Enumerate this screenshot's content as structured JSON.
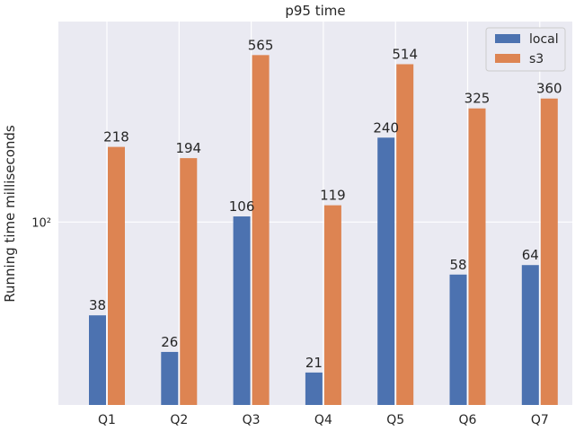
{
  "chart_data": {
    "type": "bar",
    "title": "p95 time",
    "xlabel": "",
    "ylabel": "Running time milliseconds",
    "yscale": "log",
    "ylim": [
      15,
      800
    ],
    "y_tick_labels": [
      {
        "value": 100,
        "label": "10²"
      }
    ],
    "categories": [
      "Q1",
      "Q2",
      "Q3",
      "Q4",
      "Q5",
      "Q6",
      "Q7"
    ],
    "series": [
      {
        "name": "local",
        "color": "#4c72b0",
        "values": [
          38,
          26,
          106,
          21,
          240,
          58,
          64
        ]
      },
      {
        "name": "s3",
        "color": "#dd8452",
        "values": [
          218,
          194,
          565,
          119,
          514,
          325,
          360
        ]
      }
    ],
    "grid": true,
    "legend_position": "top-right"
  }
}
